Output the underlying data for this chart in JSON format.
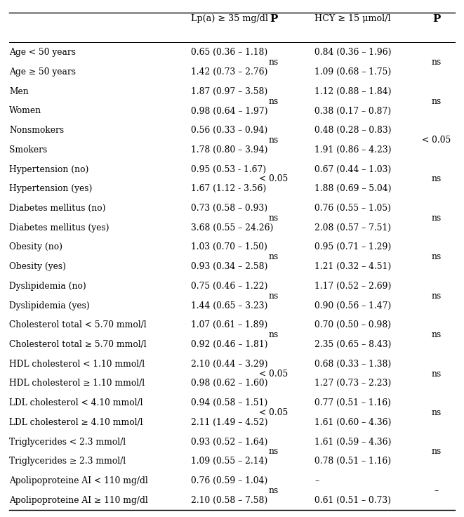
{
  "col_headers": [
    "",
    "Lp(a) ≥ 35 mg/dl",
    "P",
    "HCY ≥ 15 μmol/l",
    "P"
  ],
  "rows": [
    [
      "Age < 50 years",
      "0.65 (0.36 – 1.18)",
      "0.84 (0.36 – 1.96)"
    ],
    [
      "Age ≥ 50 years",
      "1.42 (0.73 – 2.76)",
      "1.09 (0.68 – 1.75)"
    ],
    [
      "Men",
      "1.87 (0.97 – 3.58)",
      "1.12 (0.88 – 1.84)"
    ],
    [
      "Women",
      "0.98 (0.64 – 1.97)",
      "0.38 (0.17 – 0.87)"
    ],
    [
      "Nonsmokers",
      "0.56 (0.33 – 0.94)",
      "0.48 (0.28 – 0.83)"
    ],
    [
      "Smokers",
      "1.78 (0.80 – 3.94)",
      "1.91 (0.86 – 4.23)"
    ],
    [
      "Hypertension (no)",
      "0.95 (0.53 - 1.67)",
      "0.67 (0.44 – 1.03)"
    ],
    [
      "Hypertension (yes)",
      "1.67 (1.12 - 3.56)",
      "1.88 (0.69 – 5.04)"
    ],
    [
      "Diabetes mellitus (no)",
      "0.73 (0.58 – 0.93)",
      "0.76 (0.55 – 1.05)"
    ],
    [
      "Diabetes mellitus (yes)",
      "3.68 (0.55 – 24.26)",
      "2.08 (0.57 – 7.51)"
    ],
    [
      "Obesity (no)",
      "1.03 (0.70 – 1.50)",
      "0.95 (0.71 – 1.29)"
    ],
    [
      "Obesity (yes)",
      "0.93 (0.34 – 2.58)",
      "1.21 (0.32 – 4.51)"
    ],
    [
      "Dyslipidemia (no)",
      "0.75 (0.46 – 1.22)",
      "1.17 (0.52 – 2.69)"
    ],
    [
      "Dyslipidemia (yes)",
      "1.44 (0.65 – 3.23)",
      "0.90 (0.56 – 1.47)"
    ],
    [
      "Cholesterol total < 5.70 mmol/l",
      "1.07 (0.61 – 1.89)",
      "0.70 (0.50 – 0.98)"
    ],
    [
      "Cholesterol total ≥ 5.70 mmol/l",
      "0.92 (0.46 – 1.81)",
      "2.35 (0.65 – 8.43)"
    ],
    [
      "HDL cholesterol < 1.10 mmol/l",
      "2.10 (0.44 – 3.29)",
      "0.68 (0.33 – 1.38)"
    ],
    [
      "HDL cholesterol ≥ 1.10 mmol/l",
      "0.98 (0.62 – 1.60)",
      "1.27 (0.73 – 2.23)"
    ],
    [
      "LDL cholesterol < 4.10 mmol/l",
      "0.94 (0.58 – 1.51)",
      "0.77 (0.51 – 1.16)"
    ],
    [
      "LDL cholesterol ≥ 4.10 mmol/l",
      "2.11 (1.49 – 4.52)",
      "1.61 (0.60 – 4.36)"
    ],
    [
      "Triglycerides < 2.3 mmol/l",
      "0.93 (0.52 – 1.64)",
      "1.61 (0.59 – 4.36)"
    ],
    [
      "Triglycerides ≥ 2.3 mmol/l",
      "1.09 (0.55 – 2.14)",
      "0.78 (0.51 – 1.16)"
    ],
    [
      "Apolipoproteine AI < 110 mg/dl",
      "0.76 (0.59 – 1.04)",
      "–"
    ],
    [
      "Apolipoproteine AI ≥ 110 mg/dl",
      "2.10 (0.58 – 7.58)",
      "0.61 (0.51 – 0.73)"
    ]
  ],
  "p_lpa": [
    "ns",
    "ns",
    "ns",
    "< 0.05",
    "ns",
    "ns",
    "ns",
    "ns",
    "< 0.05",
    "< 0.05",
    "ns",
    "ns"
  ],
  "p_hcy": [
    "ns",
    "ns",
    "< 0.05",
    "ns",
    "ns",
    "ns",
    "ns",
    "ns",
    "ns",
    "ns",
    "ns",
    "–"
  ],
  "bg_color": "#ffffff",
  "text_color": "#000000",
  "header_fontsize": 9.2,
  "row_fontsize": 8.8,
  "p_fontsize": 8.8,
  "fig_width": 6.61,
  "fig_height": 7.36,
  "dpi": 100
}
